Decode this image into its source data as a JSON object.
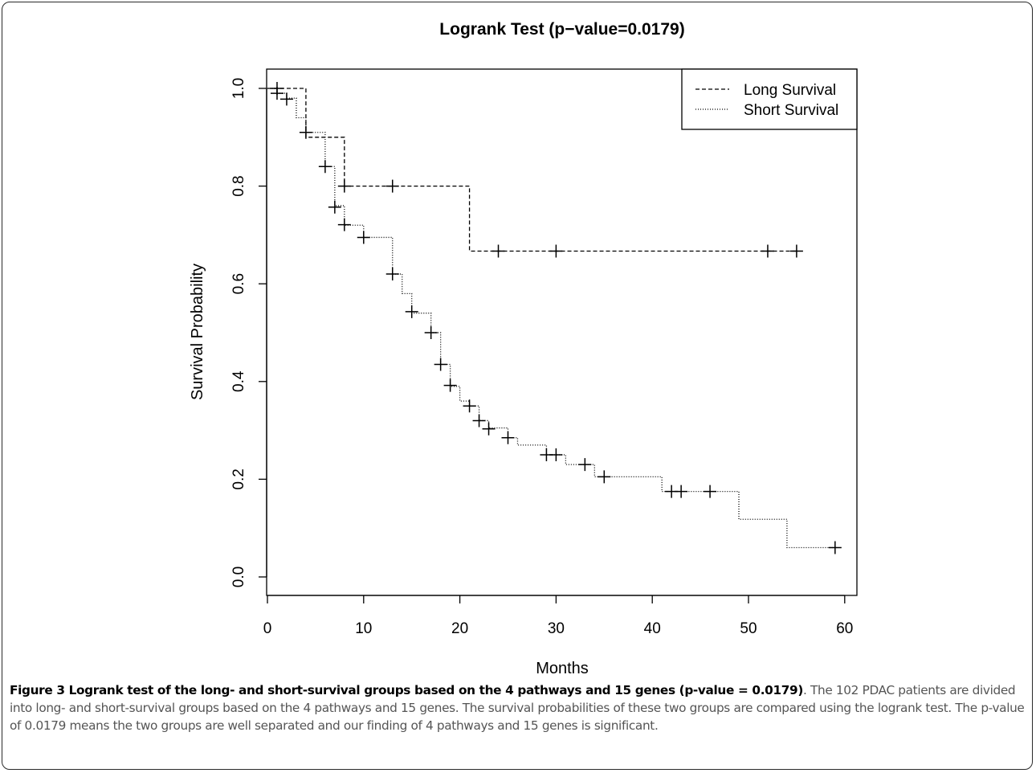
{
  "chart_data": {
    "type": "line",
    "step": true,
    "title": "Logrank Test (p−value=0.0179)",
    "xlabel": "Months",
    "ylabel": "Survival Probability",
    "xlim": [
      0,
      60
    ],
    "ylim": [
      0,
      1
    ],
    "xticks": [
      "0",
      "10",
      "20",
      "30",
      "40",
      "50",
      "60"
    ],
    "yticks": [
      "0.0",
      "0.2",
      "0.4",
      "0.6",
      "0.8",
      "1.0"
    ],
    "legend_position": "top-right",
    "grid": false,
    "series": [
      {
        "name": "Long Survival",
        "line_style": "dashed",
        "steps": [
          [
            0,
            1.0
          ],
          [
            4,
            0.9
          ],
          [
            8,
            0.8
          ],
          [
            21,
            0.667
          ]
        ],
        "end_x": 55,
        "censored": [
          [
            1,
            1.0
          ],
          [
            8,
            0.8
          ],
          [
            13,
            0.8
          ],
          [
            24,
            0.667
          ],
          [
            30,
            0.667
          ],
          [
            52,
            0.667
          ],
          [
            55,
            0.667
          ]
        ]
      },
      {
        "name": "Short Survival",
        "line_style": "dotted",
        "steps": [
          [
            0,
            1.0
          ],
          [
            1,
            0.99
          ],
          [
            2,
            0.98
          ],
          [
            3,
            0.94
          ],
          [
            4,
            0.91
          ],
          [
            6,
            0.84
          ],
          [
            7,
            0.76
          ],
          [
            8,
            0.72
          ],
          [
            10,
            0.695
          ],
          [
            13,
            0.62
          ],
          [
            14,
            0.58
          ],
          [
            15,
            0.54
          ],
          [
            17,
            0.5
          ],
          [
            18,
            0.435
          ],
          [
            19,
            0.39
          ],
          [
            20,
            0.36
          ],
          [
            21,
            0.35
          ],
          [
            22,
            0.32
          ],
          [
            23,
            0.305
          ],
          [
            25,
            0.285
          ],
          [
            26,
            0.27
          ],
          [
            29,
            0.25
          ],
          [
            31,
            0.23
          ],
          [
            34,
            0.205
          ],
          [
            41,
            0.175
          ],
          [
            49,
            0.118
          ],
          [
            54,
            0.06
          ]
        ],
        "end_x": 59,
        "censored": [
          [
            1,
            0.99
          ],
          [
            2,
            0.978
          ],
          [
            4,
            0.91
          ],
          [
            6,
            0.84
          ],
          [
            7,
            0.757
          ],
          [
            8,
            0.721
          ],
          [
            10,
            0.695
          ],
          [
            13,
            0.62
          ],
          [
            15,
            0.543
          ],
          [
            17,
            0.5
          ],
          [
            18,
            0.435
          ],
          [
            19,
            0.392
          ],
          [
            21,
            0.35
          ],
          [
            22,
            0.32
          ],
          [
            23,
            0.303
          ],
          [
            25,
            0.285
          ],
          [
            29,
            0.25
          ],
          [
            30,
            0.25
          ],
          [
            33,
            0.23
          ],
          [
            35,
            0.205
          ],
          [
            42,
            0.175
          ],
          [
            43,
            0.175
          ],
          [
            46,
            0.175
          ],
          [
            59,
            0.06
          ]
        ]
      }
    ]
  },
  "caption": {
    "label": "Figure 3 Logrank test of the long- and short-survival groups based on the 4 pathways and 15 genes (p-value = 0.0179)",
    "text": ". The 102 PDAC patients are divided into long- and short-survival groups based on the 4 pathways and 15 genes. The survival probabilities of these two groups are compared using the logrank test. The p-value of 0.0179 means the two groups are well separated and our finding of 4 pathways and 15 genes is significant."
  }
}
